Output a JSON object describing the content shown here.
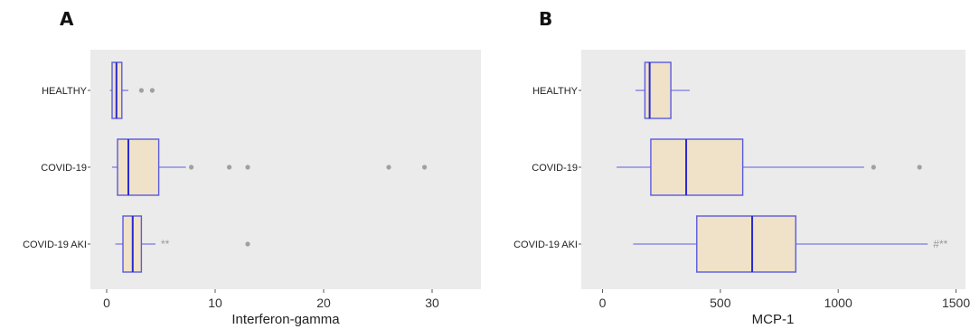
{
  "chart_data": [
    {
      "type": "boxplot",
      "panel_label": "A",
      "xlabel": "Interferon-gamma",
      "ylabel": "",
      "xlim": [
        -1.5,
        34.5
      ],
      "xticks": [
        0,
        10,
        20,
        30
      ],
      "grid": false,
      "categories": [
        "HEALTHY",
        "COVID-19",
        "COVID-19 AKI"
      ],
      "boxes": [
        {
          "category": "HEALTHY",
          "whisker_low": 0.3,
          "q1": 0.5,
          "median": 0.9,
          "q3": 1.4,
          "whisker_high": 2.0,
          "outliers": [
            3.2,
            4.2
          ],
          "annotation": ""
        },
        {
          "category": "COVID-19",
          "whisker_low": 0.5,
          "q1": 1.0,
          "median": 2.0,
          "q3": 4.8,
          "whisker_high": 7.3,
          "outliers": [
            7.8,
            11.3,
            13.0,
            26.0,
            29.3
          ],
          "annotation": ""
        },
        {
          "category": "COVID-19 AKI",
          "whisker_low": 0.8,
          "q1": 1.5,
          "median": 2.4,
          "q3": 3.2,
          "whisker_high": 4.5,
          "outliers": [
            13.0
          ],
          "annotation": "**"
        }
      ]
    },
    {
      "type": "boxplot",
      "panel_label": "B",
      "xlabel": "MCP-1",
      "ylabel": "",
      "xlim": [
        -90,
        1540
      ],
      "xticks": [
        0,
        500,
        1000,
        1500
      ],
      "grid": false,
      "categories": [
        "HEALTHY",
        "COVID-19",
        "COVID-19 AKI"
      ],
      "boxes": [
        {
          "category": "HEALTHY",
          "whisker_low": 140,
          "q1": 180,
          "median": 200,
          "q3": 290,
          "whisker_high": 370,
          "outliers": [],
          "annotation": ""
        },
        {
          "category": "COVID-19",
          "whisker_low": 60,
          "q1": 205,
          "median": 355,
          "q3": 595,
          "whisker_high": 1110,
          "outliers": [
            1150,
            1345
          ],
          "annotation": ""
        },
        {
          "category": "COVID-19 AKI",
          "whisker_low": 130,
          "q1": 400,
          "median": 635,
          "q3": 820,
          "whisker_high": 1380,
          "outliers": [],
          "annotation": "#**"
        }
      ]
    }
  ],
  "colors": {
    "panel_background": "#ebebeb",
    "box_fill": "#efe2c9",
    "box_stroke": "#5a5ae0",
    "median": "#2a2ad0",
    "whisker": "#7a7ae8",
    "outlier": "#a0a0a0"
  }
}
